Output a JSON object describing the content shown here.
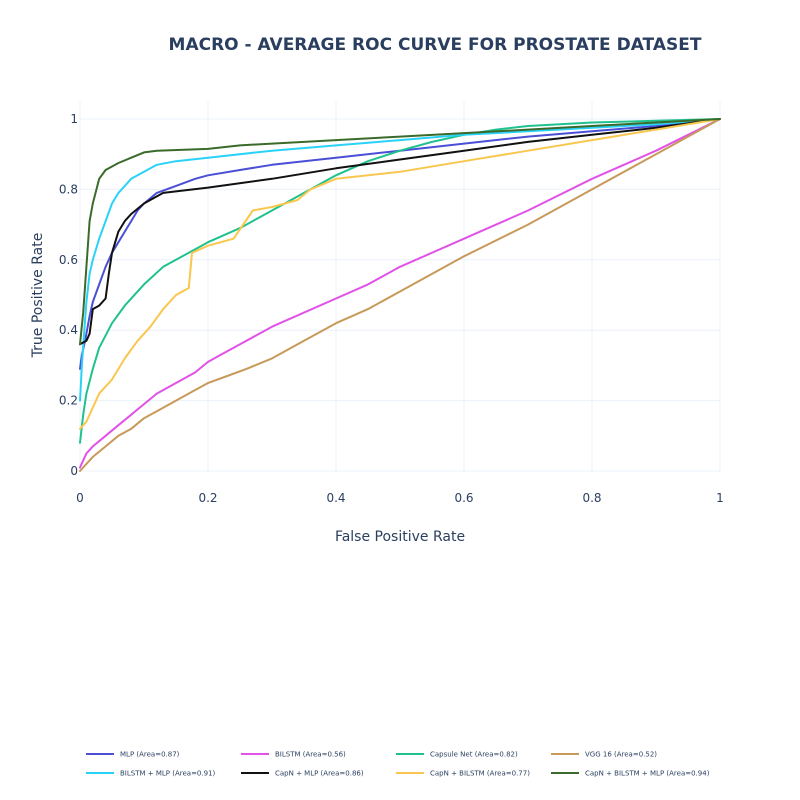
{
  "chart_data": {
    "type": "line",
    "title": "MACRO - AVERAGE  ROC CURVE  FOR  PROSTATE  DATASET",
    "xlabel": "False Positive Rate",
    "ylabel": "True Positive Rate",
    "xlim": [
      0,
      1
    ],
    "ylim": [
      0,
      1
    ],
    "xticks": [
      "0",
      "0.2",
      "0.4",
      "0.6",
      "0.8",
      "1"
    ],
    "yticks": [
      "0",
      "0.2",
      "0.4",
      "0.6",
      "0.8",
      "1"
    ],
    "grid": true,
    "legend_position": "bottom",
    "series": [
      {
        "name": "MLP (Area=0.87)",
        "color": "#4a4fd6",
        "x": [
          0,
          0.003,
          0.008,
          0.015,
          0.02,
          0.03,
          0.04,
          0.05,
          0.06,
          0.07,
          0.08,
          0.09,
          0.1,
          0.12,
          0.15,
          0.18,
          0.2,
          0.25,
          0.3,
          0.4,
          0.5,
          0.6,
          0.7,
          0.8,
          0.9,
          1
        ],
        "y": [
          0.29,
          0.33,
          0.37,
          0.44,
          0.48,
          0.53,
          0.58,
          0.62,
          0.65,
          0.68,
          0.71,
          0.74,
          0.76,
          0.79,
          0.81,
          0.83,
          0.84,
          0.855,
          0.87,
          0.89,
          0.91,
          0.93,
          0.95,
          0.965,
          0.98,
          1
        ]
      },
      {
        "name": "BILSTM (Area=0.56)",
        "color": "#e052e8",
        "x": [
          0,
          0.01,
          0.02,
          0.04,
          0.06,
          0.08,
          0.1,
          0.12,
          0.15,
          0.18,
          0.2,
          0.22,
          0.25,
          0.3,
          0.35,
          0.4,
          0.45,
          0.5,
          0.6,
          0.7,
          0.8,
          0.9,
          1
        ],
        "y": [
          0.01,
          0.05,
          0.07,
          0.1,
          0.13,
          0.16,
          0.19,
          0.22,
          0.25,
          0.28,
          0.31,
          0.33,
          0.36,
          0.41,
          0.45,
          0.49,
          0.53,
          0.58,
          0.66,
          0.74,
          0.83,
          0.91,
          1
        ]
      },
      {
        "name": "Capsule Net (Area=0.82)",
        "color": "#1fc28e",
        "x": [
          0,
          0.005,
          0.01,
          0.02,
          0.03,
          0.05,
          0.07,
          0.1,
          0.13,
          0.16,
          0.2,
          0.25,
          0.3,
          0.35,
          0.4,
          0.45,
          0.5,
          0.55,
          0.6,
          0.65,
          0.7,
          0.8,
          0.9,
          1
        ],
        "y": [
          0.08,
          0.16,
          0.22,
          0.29,
          0.35,
          0.42,
          0.47,
          0.53,
          0.58,
          0.61,
          0.65,
          0.69,
          0.74,
          0.79,
          0.84,
          0.88,
          0.91,
          0.935,
          0.955,
          0.97,
          0.98,
          0.99,
          0.995,
          1
        ]
      },
      {
        "name": "VGG 16 (Area=0.52)",
        "color": "#c79a5a",
        "x": [
          0,
          0.02,
          0.04,
          0.06,
          0.08,
          0.1,
          0.12,
          0.15,
          0.18,
          0.2,
          0.23,
          0.26,
          0.3,
          0.35,
          0.4,
          0.45,
          0.5,
          0.55,
          0.6,
          0.7,
          0.8,
          0.9,
          1
        ],
        "y": [
          0,
          0.04,
          0.07,
          0.1,
          0.12,
          0.15,
          0.17,
          0.2,
          0.23,
          0.25,
          0.27,
          0.29,
          0.32,
          0.37,
          0.42,
          0.46,
          0.51,
          0.56,
          0.61,
          0.7,
          0.8,
          0.9,
          1
        ]
      },
      {
        "name": "BILSTM + MLP (Area=0.91)",
        "color": "#2bd2f7",
        "x": [
          0,
          0.003,
          0.006,
          0.01,
          0.015,
          0.02,
          0.03,
          0.04,
          0.05,
          0.06,
          0.07,
          0.08,
          0.1,
          0.12,
          0.15,
          0.2,
          0.3,
          0.4,
          0.5,
          0.6,
          0.7,
          0.8,
          0.9,
          1
        ],
        "y": [
          0.2,
          0.3,
          0.38,
          0.48,
          0.56,
          0.6,
          0.66,
          0.71,
          0.76,
          0.79,
          0.81,
          0.83,
          0.85,
          0.87,
          0.88,
          0.89,
          0.91,
          0.925,
          0.94,
          0.955,
          0.965,
          0.975,
          0.985,
          1
        ]
      },
      {
        "name": "CapN + MLP (Area=0.86)",
        "color": "#111111",
        "x": [
          0,
          0.01,
          0.015,
          0.02,
          0.03,
          0.04,
          0.045,
          0.05,
          0.06,
          0.07,
          0.08,
          0.1,
          0.12,
          0.13,
          0.2,
          0.3,
          0.4,
          0.5,
          0.6,
          0.7,
          0.8,
          0.9,
          1
        ],
        "y": [
          0.36,
          0.37,
          0.39,
          0.46,
          0.47,
          0.49,
          0.56,
          0.62,
          0.68,
          0.71,
          0.73,
          0.76,
          0.78,
          0.79,
          0.805,
          0.83,
          0.86,
          0.885,
          0.91,
          0.935,
          0.955,
          0.975,
          1
        ]
      },
      {
        "name": "CapN + BILSTM (Area=0.77)",
        "color": "#f9c74f",
        "x": [
          0,
          0.01,
          0.02,
          0.03,
          0.05,
          0.07,
          0.09,
          0.11,
          0.13,
          0.15,
          0.17,
          0.175,
          0.2,
          0.24,
          0.27,
          0.3,
          0.34,
          0.36,
          0.4,
          0.5,
          0.6,
          0.7,
          0.8,
          0.9,
          1
        ],
        "y": [
          0.12,
          0.14,
          0.18,
          0.22,
          0.26,
          0.32,
          0.37,
          0.41,
          0.46,
          0.5,
          0.52,
          0.62,
          0.64,
          0.66,
          0.74,
          0.75,
          0.77,
          0.8,
          0.83,
          0.85,
          0.88,
          0.91,
          0.94,
          0.97,
          1
        ]
      },
      {
        "name": "CapN + BILSTM + MLP (Area=0.94)",
        "color": "#3a6b2a",
        "x": [
          0,
          0.005,
          0.01,
          0.015,
          0.02,
          0.03,
          0.04,
          0.05,
          0.06,
          0.08,
          0.1,
          0.12,
          0.2,
          0.25,
          0.3,
          0.4,
          0.5,
          0.6,
          0.7,
          0.8,
          0.9,
          1
        ],
        "y": [
          0.36,
          0.45,
          0.58,
          0.71,
          0.76,
          0.83,
          0.855,
          0.865,
          0.875,
          0.89,
          0.905,
          0.91,
          0.915,
          0.925,
          0.93,
          0.94,
          0.95,
          0.96,
          0.97,
          0.98,
          0.99,
          1
        ]
      }
    ]
  }
}
